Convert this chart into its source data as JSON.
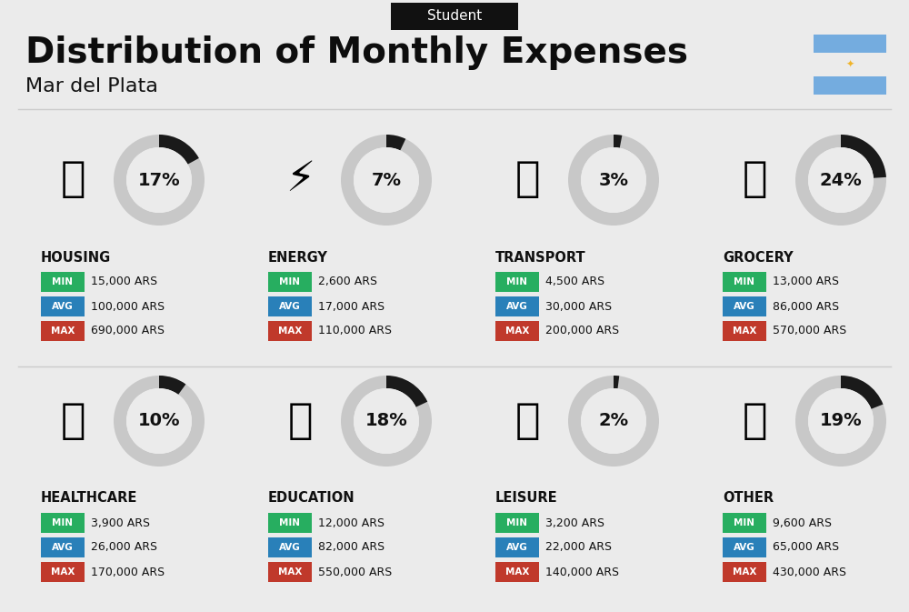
{
  "title": "Distribution of Monthly Expenses",
  "subtitle": "Student",
  "location": "Mar del Plata",
  "background_color": "#ebebeb",
  "categories": [
    {
      "name": "HOUSING",
      "percent": 17,
      "min": "15,000 ARS",
      "avg": "100,000 ARS",
      "max": "690,000 ARS",
      "col": 0,
      "row": 0,
      "icon": "housing"
    },
    {
      "name": "ENERGY",
      "percent": 7,
      "min": "2,600 ARS",
      "avg": "17,000 ARS",
      "max": "110,000 ARS",
      "col": 1,
      "row": 0,
      "icon": "energy"
    },
    {
      "name": "TRANSPORT",
      "percent": 3,
      "min": "4,500 ARS",
      "avg": "30,000 ARS",
      "max": "200,000 ARS",
      "col": 2,
      "row": 0,
      "icon": "transport"
    },
    {
      "name": "GROCERY",
      "percent": 24,
      "min": "13,000 ARS",
      "avg": "86,000 ARS",
      "max": "570,000 ARS",
      "col": 3,
      "row": 0,
      "icon": "grocery"
    },
    {
      "name": "HEALTHCARE",
      "percent": 10,
      "min": "3,900 ARS",
      "avg": "26,000 ARS",
      "max": "170,000 ARS",
      "col": 0,
      "row": 1,
      "icon": "healthcare"
    },
    {
      "name": "EDUCATION",
      "percent": 18,
      "min": "12,000 ARS",
      "avg": "82,000 ARS",
      "max": "550,000 ARS",
      "col": 1,
      "row": 1,
      "icon": "education"
    },
    {
      "name": "LEISURE",
      "percent": 2,
      "min": "3,200 ARS",
      "avg": "22,000 ARS",
      "max": "140,000 ARS",
      "col": 2,
      "row": 1,
      "icon": "leisure"
    },
    {
      "name": "OTHER",
      "percent": 19,
      "min": "9,600 ARS",
      "avg": "65,000 ARS",
      "max": "430,000 ARS",
      "col": 3,
      "row": 1,
      "icon": "other"
    }
  ],
  "color_min": "#27ae60",
  "color_avg": "#2980b9",
  "color_max": "#c0392b",
  "donut_filled": "#1a1a1a",
  "donut_empty": "#c8c8c8",
  "flag_light_blue": "#74acdf",
  "flag_white": "#ffffff"
}
